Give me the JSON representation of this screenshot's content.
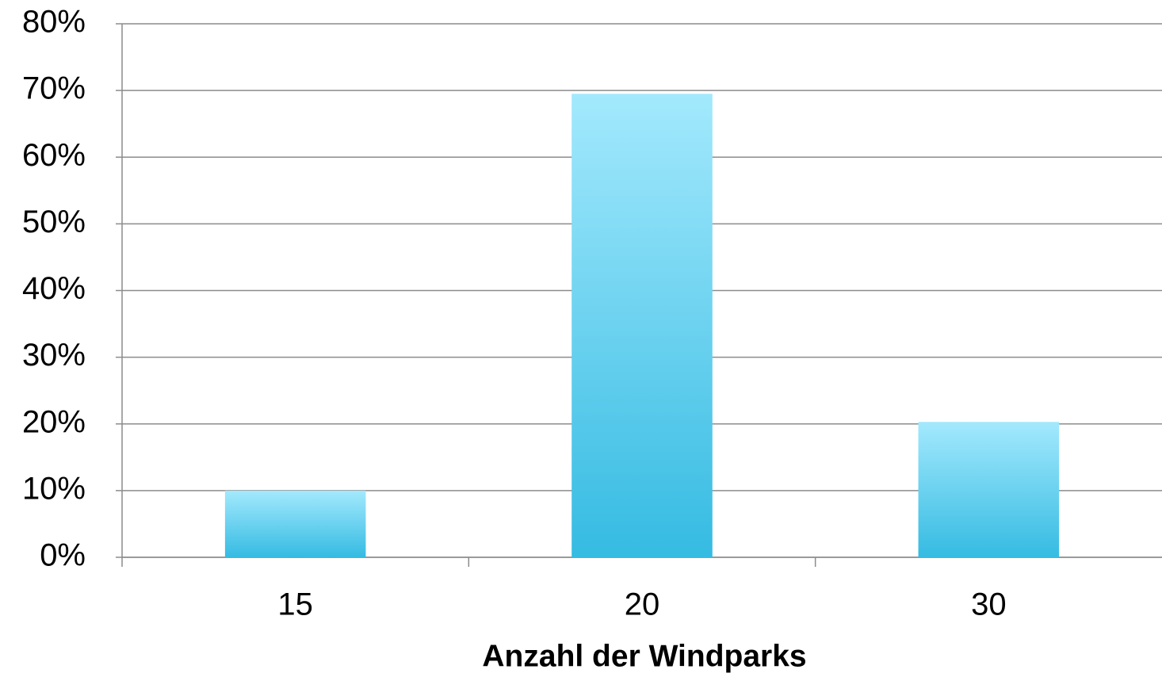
{
  "chart_data": {
    "type": "bar",
    "x_label": "Anzahl der Windparks",
    "categories": [
      "15",
      "20",
      "30"
    ],
    "values": [
      10,
      69.5,
      20.3
    ],
    "color": "#35bbe2",
    "ylim": [
      0,
      80
    ],
    "yticks": [
      {
        "value": 0,
        "label": "0%"
      },
      {
        "value": 10,
        "label": "10%"
      },
      {
        "value": 20,
        "label": "20%"
      },
      {
        "value": 30,
        "label": "30%"
      },
      {
        "value": 40,
        "label": "40%"
      },
      {
        "value": 50,
        "label": "50%"
      },
      {
        "value": 60,
        "label": "60%"
      },
      {
        "value": 70,
        "label": "70%"
      },
      {
        "value": 80,
        "label": "80%"
      }
    ],
    "grid": true
  }
}
